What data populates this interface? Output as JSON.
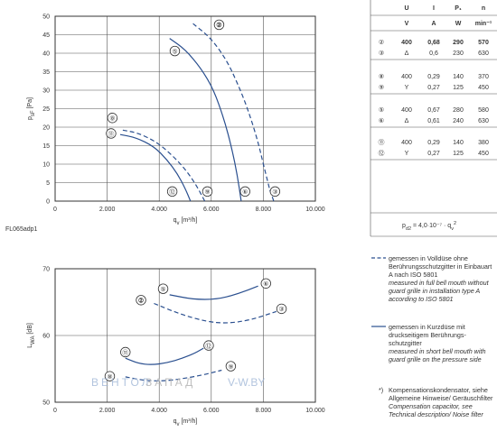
{
  "chart_data": [
    {
      "type": "line",
      "xlabel": "q",
      "xlabel_sub": "v",
      "xlabel_unit": " [m³/h]",
      "ylabel": "p",
      "ylabel_sub": "sF",
      "ylabel_unit": " [Pa]",
      "xlim": [
        0,
        10000
      ],
      "ylim": [
        0,
        50
      ],
      "x_ticks": [
        0,
        2000,
        4000,
        6000,
        8000,
        10000
      ],
      "x_tick_labels": [
        "0",
        "2.000",
        "4.000",
        "6.000",
        "8.000",
        "10.000"
      ],
      "y_ticks": [
        0,
        5,
        10,
        15,
        20,
        25,
        30,
        35,
        40,
        45,
        50
      ],
      "y_tick_labels": [
        "0",
        "5",
        "10",
        "15",
        "20",
        "25",
        "30",
        "35",
        "40",
        "45",
        "50"
      ],
      "grid": true,
      "corner_label": "FL065adp1",
      "series": [
        {
          "name": "②",
          "style": "dashed",
          "label_at": [
            6.6,
            3.3
          ],
          "x": [
            5300,
            6000,
            6600,
            7000,
            7400,
            7800,
            8000,
            8250
          ],
          "y": [
            48,
            44,
            38,
            32,
            25,
            16,
            10,
            3
          ]
        },
        {
          "name": "③",
          "style": "dashed",
          "label_at": [
            4.6,
            0.8
          ],
          "x": [
            8250,
            8400
          ],
          "y": [
            3,
            0
          ]
        },
        {
          "name": "⑤",
          "style": "solid",
          "label_at": [
            6.2,
            -1.4
          ],
          "x": [
            4400,
            5000,
            5600,
            6100,
            6500,
            6800,
            7000,
            7150
          ],
          "y": [
            44,
            41,
            36,
            30,
            22,
            14,
            7,
            0
          ]
        },
        {
          "name": "⑥",
          "style": "solid",
          "label_at": [
            1.5,
            -1.6
          ],
          "x": [
            7150
          ],
          "y": [
            0
          ]
        },
        {
          "name": "⑧",
          "style": "dashed",
          "label_at": [
            -7.7,
            5.2
          ],
          "x": [
            2600,
            3200,
            3900,
            4500,
            5000,
            5400,
            5750
          ],
          "y": [
            19.2,
            18.4,
            16,
            12.4,
            8.6,
            4.6,
            0
          ]
        },
        {
          "name": "⑨",
          "style": "dashed",
          "label_at": [
            3,
            -1.6
          ],
          "x": [
            5750
          ],
          "y": [
            0
          ]
        },
        {
          "name": "⑪",
          "style": "solid",
          "label_at": [
            -7.4,
            0
          ],
          "x": [
            2500,
            3100,
            3800,
            4300,
            4700,
            5000,
            5200
          ],
          "y": [
            18,
            17.2,
            14.8,
            11.2,
            7.4,
            3.4,
            0
          ]
        },
        {
          "name": "⑫",
          "style": "solid",
          "label_at": [
            -5,
            -1.6
          ],
          "x": [
            5200
          ],
          "y": [
            0
          ]
        }
      ]
    },
    {
      "type": "line",
      "xlabel": "q",
      "xlabel_sub": "v",
      "xlabel_unit": " [m³/h]",
      "ylabel": "L",
      "ylabel_sub": "WA",
      "ylabel_unit": " [dB]",
      "xlim": [
        0,
        10000
      ],
      "ylim": [
        50,
        70
      ],
      "x_ticks": [
        0,
        2000,
        4000,
        6000,
        8000,
        10000
      ],
      "x_tick_labels": [
        "0",
        "2.000",
        "4.000",
        "6.000",
        "8.000",
        "10.000"
      ],
      "y_ticks": [
        50,
        60,
        70
      ],
      "y_tick_labels": [
        "50",
        "60",
        "70"
      ],
      "grid": true,
      "series": [
        {
          "name": "⑤",
          "style": "solid",
          "label_at": [
            4150,
            67
          ],
          "x": [
            4400,
            5300,
            6200,
            7000,
            7800
          ],
          "y": [
            66.1,
            65.4,
            65.4,
            66.2,
            67.4
          ]
        },
        {
          "name": "⑥",
          "style": "solid",
          "label_at": [
            8100,
            67.8
          ],
          "x": [
            7800
          ],
          "y": [
            67.4
          ]
        },
        {
          "name": "②",
          "style": "dashed",
          "label_at": [
            3300,
            65.3
          ],
          "x": [
            3800,
            4800,
            5800,
            6600,
            7500,
            8500
          ],
          "y": [
            64.8,
            63.2,
            62.1,
            61.8,
            62.3,
            63.6
          ]
        },
        {
          "name": "③",
          "style": "dashed",
          "label_at": [
            8700,
            64
          ],
          "x": [
            8500
          ],
          "y": [
            63.6
          ]
        },
        {
          "name": "⑪",
          "style": "solid",
          "label_at": [
            2700,
            57.5
          ],
          "x": [
            2700,
            3200,
            3700,
            4300,
            4900,
            5400,
            5700
          ],
          "y": [
            56.6,
            55.8,
            55.6,
            55.9,
            56.6,
            57.4,
            58.1
          ]
        },
        {
          "name": "⑫",
          "style": "solid",
          "label_at": [
            5900,
            58.5
          ],
          "x": [
            5700
          ],
          "y": [
            58.1
          ]
        },
        {
          "name": "⑧",
          "style": "dashed",
          "label_at": [
            2100,
            53.9
          ],
          "x": [
            2700,
            3500,
            4300,
            5000,
            5700,
            6400
          ],
          "y": [
            53.8,
            53.2,
            53.2,
            53.6,
            54.1,
            54.8
          ]
        },
        {
          "name": "⑨",
          "style": "dashed",
          "label_at": [
            6750,
            55.4
          ],
          "x": [
            6400
          ],
          "y": [
            54.8
          ]
        }
      ]
    }
  ],
  "spec_table": {
    "header1": [
      "",
      "U",
      "I",
      "P₁",
      "n"
    ],
    "header2": [
      "",
      "V",
      "A",
      "W",
      "min⁻¹"
    ],
    "groups": [
      [
        [
          "②",
          "400",
          "0,68",
          "290",
          "570"
        ],
        [
          "③",
          "Δ",
          "0,6",
          "230",
          "630"
        ]
      ],
      [
        [
          "⑧",
          "400",
          "0,29",
          "140",
          "370"
        ],
        [
          "⑨",
          "Y",
          "0,27",
          "125",
          "450"
        ]
      ],
      [
        [
          "⑤",
          "400",
          "0,67",
          "280",
          "580"
        ],
        [
          "⑥",
          "Δ",
          "0,61",
          "240",
          "630"
        ]
      ],
      [
        [
          "⑪",
          "400",
          "0,29",
          "140",
          "380"
        ],
        [
          "⑫",
          "Y",
          "0,27",
          "125",
          "450"
        ]
      ]
    ],
    "formula": "p",
    "formula_sub": "d2",
    "formula_rest": " = 4,0·10⁻⁷ · q",
    "formula_sub2": "v",
    "formula_exp": "2"
  },
  "legend_notes": {
    "dashed_de": "gemessen in Volldüse ohne Berührungsschutzgitter in Einbauart A nach ISO 5801",
    "dashed_en": "measured in full bell mouth without guard grille in installation type A according to ISO 5801",
    "solid_de": "gemessen in Kurzdüse mit druckseitigem Berührungs-schutzgitter",
    "solid_en": "measured in short bell mouth with guard grille on the pressure side",
    "footnote_mark": "*)",
    "footnote_de": "Kompensationskondensator, siehe Allgemeine Hinweise/ Geräuschfilter",
    "footnote_en": "Compensation capacitor, see Technical description/ Noise filter"
  },
  "watermark": {
    "left": "ВЕНТОЛ",
    "right": "ЗАПАД",
    "site": "V-W.BY"
  }
}
